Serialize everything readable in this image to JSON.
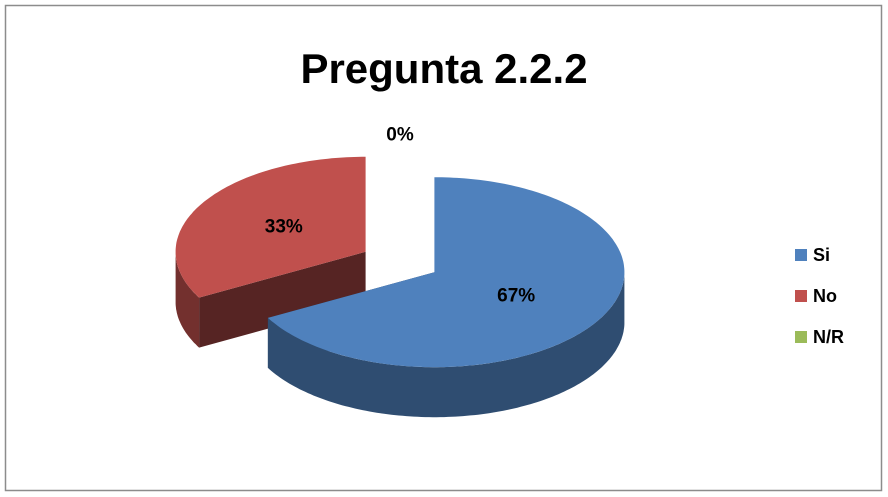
{
  "chart_data": {
    "type": "pie",
    "title": "Pregunta 2.2.2",
    "categories": [
      "Si",
      "No",
      "N/R"
    ],
    "values": [
      67,
      33,
      0
    ],
    "value_labels": [
      "67%",
      "33%",
      "0%"
    ],
    "colors": [
      "#4f81bd",
      "#c0504d",
      "#9bbb59"
    ],
    "legend": "right"
  }
}
